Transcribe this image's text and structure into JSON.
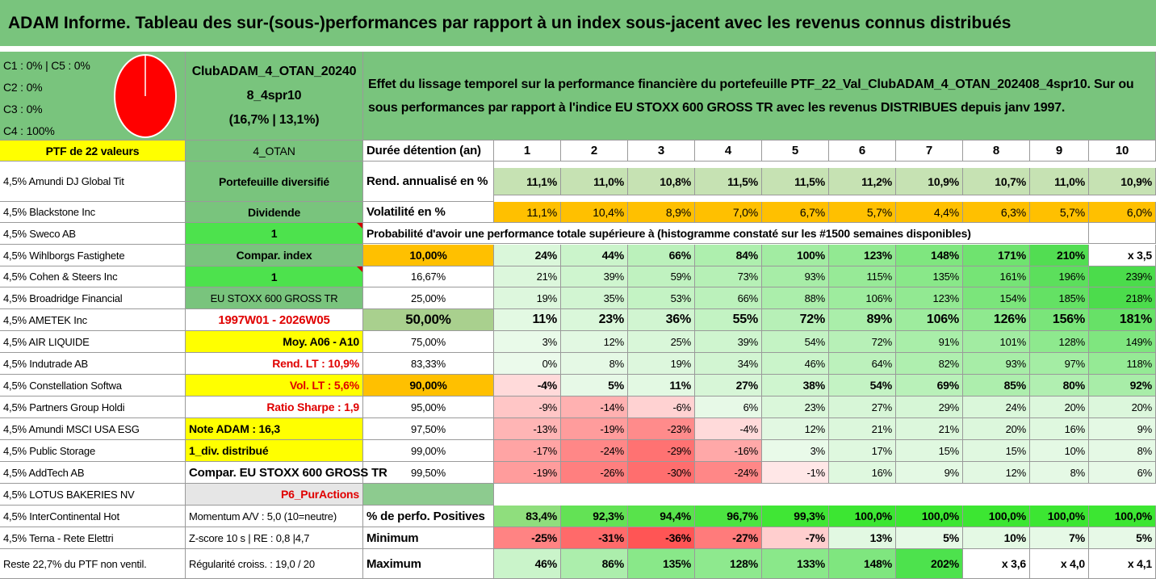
{
  "title": "ADAM Informe. Tableau des sur-(sous-)performances par rapport à un index sous-jacent avec les revenus connus distribués",
  "classes": [
    "C1 : 0% | C5 : 0%",
    "C2 : 0%",
    "C3 : 0%",
    "C4 : 100%"
  ],
  "pie": {
    "color": "#ff0000",
    "value_c4": 100
  },
  "portfolio": {
    "name_line1": "ClubADAM_4_OTAN_20240",
    "name_line2": "8_4spr10",
    "name_line3": "(16,7% | 13,1%)",
    "code": "4_OTAN"
  },
  "description": "Effet du lissage temporel sur la performance financière du portefeuille PTF_22_Val_ClubADAM_4_OTAN_202408_4spr10. Sur ou sous performances par rapport à l'indice EU STOXX 600 GROSS TR avec les revenus DISTRIBUES depuis janv 1997.",
  "ptf_header": "PTF de 22 valeurs",
  "holdings": [
    "4,5% Amundi DJ Global Tit",
    "4,5% Blackstone Inc",
    "4,5% Sweco AB",
    "4,5% Wihlborgs Fastighete",
    "4,5% Cohen & Steers Inc",
    "4,5% Broadridge Financial",
    "4,5% AMETEK Inc",
    "4,5% AIR LIQUIDE",
    "4,5% Indutrade AB",
    "4,5% Constellation Softwa",
    "4,5% Partners Group Holdi",
    "4,5% Amundi MSCI USA ESG",
    "4,5% Public Storage",
    "4,5% AddTech AB",
    "4,5% LOTUS BAKERIES NV",
    "4,5% InterContinental Hot",
    "4,5% Terna - Rete Elettri",
    "Reste 22,7% du PTF non ventil."
  ],
  "info": [
    "Portefeuille diversifié",
    "Dividende",
    "1",
    "Compar. index",
    "1",
    "EU STOXX 600 GROSS TR",
    "1997W01 - 2026W05",
    "Moy. A06 - A10",
    "Rend. LT : 10,9%",
    "Vol. LT : 5,6%",
    "Ratio Sharpe : 1,9",
    "Note ADAM : 16,3",
    "1_div. distribué",
    "Compar. EU STOXX 600 GROSS TR",
    "P6_PurActions",
    "Momentum A/V : 5,0 (10=neutre)",
    "Z-score 10 s | RE : 0,8 |4,7",
    "Régularité croiss. : 19,0 / 20"
  ],
  "duration_label": "Durée détention (an)",
  "years": [
    "1",
    "2",
    "3",
    "4",
    "5",
    "6",
    "7",
    "8",
    "9",
    "10"
  ],
  "rend_label": "Rend. annualisé en %",
  "rend": [
    "11,1%",
    "11,0%",
    "10,8%",
    "11,5%",
    "11,5%",
    "11,2%",
    "10,9%",
    "10,7%",
    "11,0%",
    "10,9%"
  ],
  "vol_label": "Volatilité en %",
  "vol": [
    "11,1%",
    "10,4%",
    "8,9%",
    "7,0%",
    "6,7%",
    "5,7%",
    "4,4%",
    "6,3%",
    "5,7%",
    "6,0%"
  ],
  "prob_caption": "Probabilité d'avoir une performance totale supérieure à (histogramme constaté sur les #1500 semaines disponibles)",
  "prob_rows": [
    {
      "p": "10,00%",
      "v": [
        "24%",
        "44%",
        "66%",
        "84%",
        "100%",
        "123%",
        "148%",
        "171%",
        "210%",
        "x 3,5"
      ]
    },
    {
      "p": "16,67%",
      "v": [
        "21%",
        "39%",
        "59%",
        "73%",
        "93%",
        "115%",
        "135%",
        "161%",
        "196%",
        "239%"
      ]
    },
    {
      "p": "25,00%",
      "v": [
        "19%",
        "35%",
        "53%",
        "66%",
        "88%",
        "106%",
        "123%",
        "154%",
        "185%",
        "218%"
      ]
    },
    {
      "p": "50,00%",
      "v": [
        "11%",
        "23%",
        "36%",
        "55%",
        "72%",
        "89%",
        "106%",
        "126%",
        "156%",
        "181%"
      ]
    },
    {
      "p": "75,00%",
      "v": [
        "3%",
        "12%",
        "25%",
        "39%",
        "54%",
        "72%",
        "91%",
        "101%",
        "128%",
        "149%"
      ]
    },
    {
      "p": "83,33%",
      "v": [
        "0%",
        "8%",
        "19%",
        "34%",
        "46%",
        "64%",
        "82%",
        "93%",
        "97%",
        "118%"
      ]
    },
    {
      "p": "90,00%",
      "v": [
        "-4%",
        "5%",
        "11%",
        "27%",
        "38%",
        "54%",
        "69%",
        "85%",
        "80%",
        "92%"
      ]
    },
    {
      "p": "95,00%",
      "v": [
        "-9%",
        "-14%",
        "-6%",
        "6%",
        "23%",
        "27%",
        "29%",
        "24%",
        "20%",
        "20%"
      ]
    },
    {
      "p": "97,50%",
      "v": [
        "-13%",
        "-19%",
        "-23%",
        "-4%",
        "12%",
        "21%",
        "21%",
        "20%",
        "16%",
        "9%"
      ]
    },
    {
      "p": "99,00%",
      "v": [
        "-17%",
        "-24%",
        "-29%",
        "-16%",
        "3%",
        "17%",
        "15%",
        "15%",
        "10%",
        "8%"
      ]
    },
    {
      "p": "99,50%",
      "v": [
        "-19%",
        "-26%",
        "-30%",
        "-24%",
        "-1%",
        "16%",
        "9%",
        "12%",
        "8%",
        "6%"
      ]
    }
  ],
  "pos_label": "% de perfo. Positives",
  "pos": [
    "83,4%",
    "92,3%",
    "94,4%",
    "96,7%",
    "99,3%",
    "100,0%",
    "100,0%",
    "100,0%",
    "100,0%",
    "100,0%"
  ],
  "min_label": "Minimum",
  "min": [
    "-25%",
    "-31%",
    "-36%",
    "-27%",
    "-7%",
    "13%",
    "5%",
    "10%",
    "7%",
    "5%"
  ],
  "max_label": "Maximum",
  "max": [
    "46%",
    "86%",
    "135%",
    "128%",
    "133%",
    "148%",
    "202%",
    "x 3,6",
    "x 4,0",
    "x 4,1"
  ]
}
